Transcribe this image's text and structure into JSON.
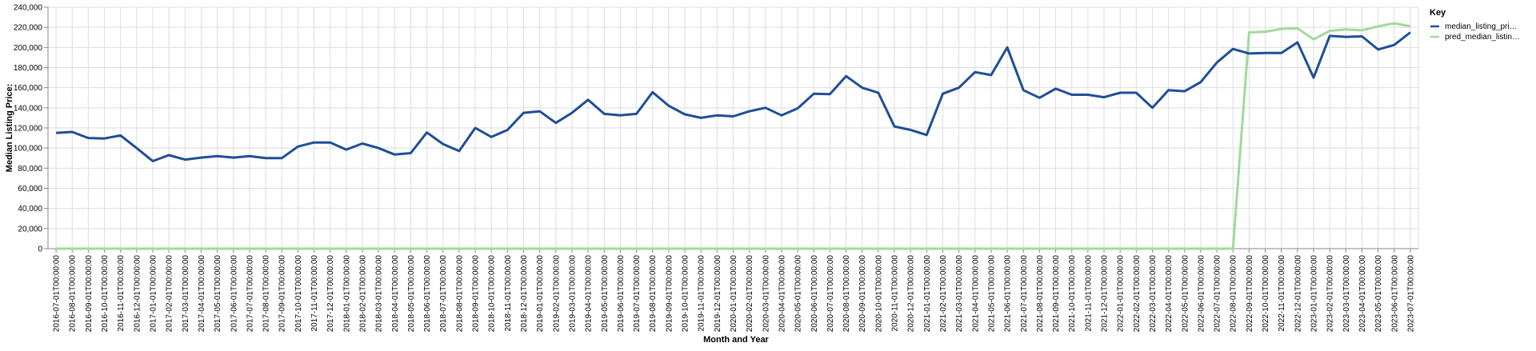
{
  "chart_data": {
    "type": "line",
    "xlabel": "Month and Year",
    "ylabel": "Median Listing Price:",
    "ylim": [
      0,
      240000
    ],
    "yticks": [
      "0",
      "20,000",
      "40,000",
      "60,000",
      "80,000",
      "100,000",
      "120,000",
      "140,000",
      "160,000",
      "180,000",
      "200,000",
      "220,000",
      "240,000"
    ],
    "grid": true,
    "legend": {
      "title": "Key",
      "placement": "top-right",
      "entries": [
        {
          "label": "median_listing_pri…",
          "color": "#1f4e96"
        },
        {
          "label": "pred_median_listin…",
          "color": "#a1d99b"
        }
      ]
    },
    "x": [
      "2016-07-01T00:00:00",
      "2016-08-01T00:00:00",
      "2016-09-01T00:00:00",
      "2016-10-01T00:00:00",
      "2016-11-01T00:00:00",
      "2016-12-01T00:00:00",
      "2017-01-01T00:00:00",
      "2017-02-01T00:00:00",
      "2017-03-01T00:00:00",
      "2017-04-01T00:00:00",
      "2017-05-01T00:00:00",
      "2017-06-01T00:00:00",
      "2017-07-01T00:00:00",
      "2017-08-01T00:00:00",
      "2017-09-01T00:00:00",
      "2017-10-01T00:00:00",
      "2017-11-01T00:00:00",
      "2017-12-01T00:00:00",
      "2018-01-01T00:00:00",
      "2018-02-01T00:00:00",
      "2018-03-01T00:00:00",
      "2018-04-01T00:00:00",
      "2018-05-01T00:00:00",
      "2018-06-01T00:00:00",
      "2018-07-01T00:00:00",
      "2018-08-01T00:00:00",
      "2018-09-01T00:00:00",
      "2018-10-01T00:00:00",
      "2018-11-01T00:00:00",
      "2018-12-01T00:00:00",
      "2019-01-01T00:00:00",
      "2019-02-01T00:00:00",
      "2019-03-01T00:00:00",
      "2019-04-01T00:00:00",
      "2019-05-01T00:00:00",
      "2019-06-01T00:00:00",
      "2019-07-01T00:00:00",
      "2019-08-01T00:00:00",
      "2019-09-01T00:00:00",
      "2019-10-01T00:00:00",
      "2019-11-01T00:00:00",
      "2019-12-01T00:00:00",
      "2020-01-01T00:00:00",
      "2020-02-01T00:00:00",
      "2020-03-01T00:00:00",
      "2020-04-01T00:00:00",
      "2020-05-01T00:00:00",
      "2020-06-01T00:00:00",
      "2020-07-01T00:00:00",
      "2020-08-01T00:00:00",
      "2020-09-01T00:00:00",
      "2020-10-01T00:00:00",
      "2020-11-01T00:00:00",
      "2020-12-01T00:00:00",
      "2021-01-01T00:00:00",
      "2021-02-01T00:00:00",
      "2021-03-01T00:00:00",
      "2021-04-01T00:00:00",
      "2021-05-01T00:00:00",
      "2021-06-01T00:00:00",
      "2021-07-01T00:00:00",
      "2021-08-01T00:00:00",
      "2021-09-01T00:00:00",
      "2021-10-01T00:00:00",
      "2021-11-01T00:00:00",
      "2021-12-01T00:00:00",
      "2022-01-01T00:00:00",
      "2022-02-01T00:00:00",
      "2022-03-01T00:00:00",
      "2022-04-01T00:00:00",
      "2022-05-01T00:00:00",
      "2022-06-01T00:00:00",
      "2022-07-01T00:00:00",
      "2022-08-01T00:00:00",
      "2022-09-01T00:00:00",
      "2022-10-01T00:00:00",
      "2022-11-01T00:00:00",
      "2022-12-01T00:00:00",
      "2023-01-01T00:00:00",
      "2023-02-01T00:00:00",
      "2023-03-01T00:00:00",
      "2023-04-01T00:00:00",
      "2023-05-01T00:00:00",
      "2023-06-01T00:00:00",
      "2023-07-01T00:00:00"
    ],
    "series": [
      {
        "name": "median_listing_pri…",
        "color": "#1f4e96",
        "values": [
          115000,
          116000,
          110000,
          109500,
          112500,
          100000,
          87000,
          93000,
          88500,
          90500,
          92000,
          90500,
          92000,
          90000,
          90000,
          101500,
          105500,
          105500,
          98500,
          104500,
          100000,
          93500,
          95000,
          115500,
          104000,
          97000,
          120000,
          111000,
          118000,
          135000,
          136500,
          125000,
          135000,
          148000,
          134000,
          132500,
          134000,
          155500,
          142000,
          133500,
          130000,
          132500,
          131500,
          136500,
          140000,
          132500,
          139500,
          154000,
          153500,
          171500,
          160000,
          155000,
          121500,
          118000,
          113000,
          154000,
          160000,
          175500,
          172500,
          200000,
          157500,
          150000,
          159000,
          153000,
          153000,
          150500,
          155000,
          155000,
          140000,
          157500,
          156500,
          165500,
          185000,
          198500,
          194000,
          194500,
          194500,
          205000,
          170000,
          211500,
          210500,
          211000,
          198000,
          202500,
          215000
        ]
      },
      {
        "name": "pred_median_listin…",
        "color": "#a1d99b",
        "values": [
          0,
          0,
          0,
          0,
          0,
          0,
          0,
          0,
          0,
          0,
          0,
          0,
          0,
          0,
          0,
          0,
          0,
          0,
          0,
          0,
          0,
          0,
          0,
          0,
          0,
          0,
          0,
          0,
          0,
          0,
          0,
          0,
          0,
          0,
          0,
          0,
          0,
          0,
          0,
          0,
          0,
          0,
          0,
          0,
          0,
          0,
          0,
          0,
          0,
          0,
          0,
          0,
          0,
          0,
          0,
          0,
          0,
          0,
          0,
          0,
          0,
          0,
          0,
          0,
          0,
          0,
          0,
          0,
          0,
          0,
          0,
          0,
          0,
          0,
          215000,
          215500,
          218500,
          219000,
          208000,
          216500,
          218000,
          217000,
          221000,
          224000,
          221000
        ]
      }
    ]
  }
}
